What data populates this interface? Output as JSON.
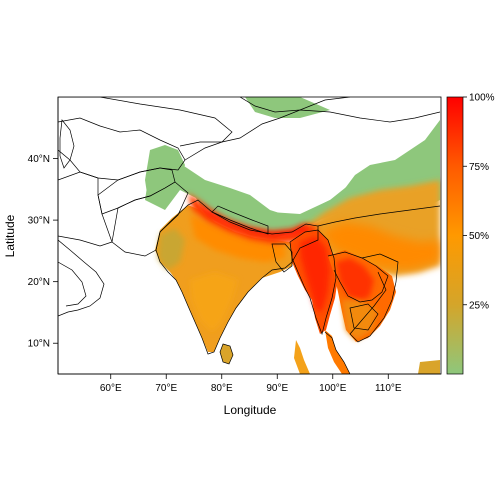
{
  "map": {
    "x_label": "Longitude",
    "y_label": "Latitude",
    "x_ticks": [
      {
        "value": 60,
        "label": "60°E"
      },
      {
        "value": 70,
        "label": "70°E"
      },
      {
        "value": 80,
        "label": "80°E"
      },
      {
        "value": 90,
        "label": "90°E"
      },
      {
        "value": 100,
        "label": "100°E"
      },
      {
        "value": 110,
        "label": "110°E"
      }
    ],
    "y_ticks": [
      {
        "value": 10,
        "label": "10°N"
      },
      {
        "value": 20,
        "label": "20°N"
      },
      {
        "value": 30,
        "label": "30°N"
      },
      {
        "value": 40,
        "label": "40°N"
      }
    ],
    "lon_range": [
      50.5,
      119.5
    ],
    "lat_range": [
      5,
      50
    ],
    "scale": {
      "unit": "%",
      "ticks": [
        {
          "value": 25,
          "label": "25%"
        },
        {
          "value": 50,
          "label": "50%"
        },
        {
          "value": 75,
          "label": "75%"
        },
        {
          "value": 100,
          "label": "100%"
        }
      ],
      "colors": [
        "#8ec77c",
        "#d4a52a",
        "#ff9900",
        "#ff5a00",
        "#ff0000"
      ]
    },
    "colors": {
      "low": "#8ec77c",
      "mid": "#f59a0f",
      "high": "#ff2000",
      "border": "#000000"
    }
  }
}
